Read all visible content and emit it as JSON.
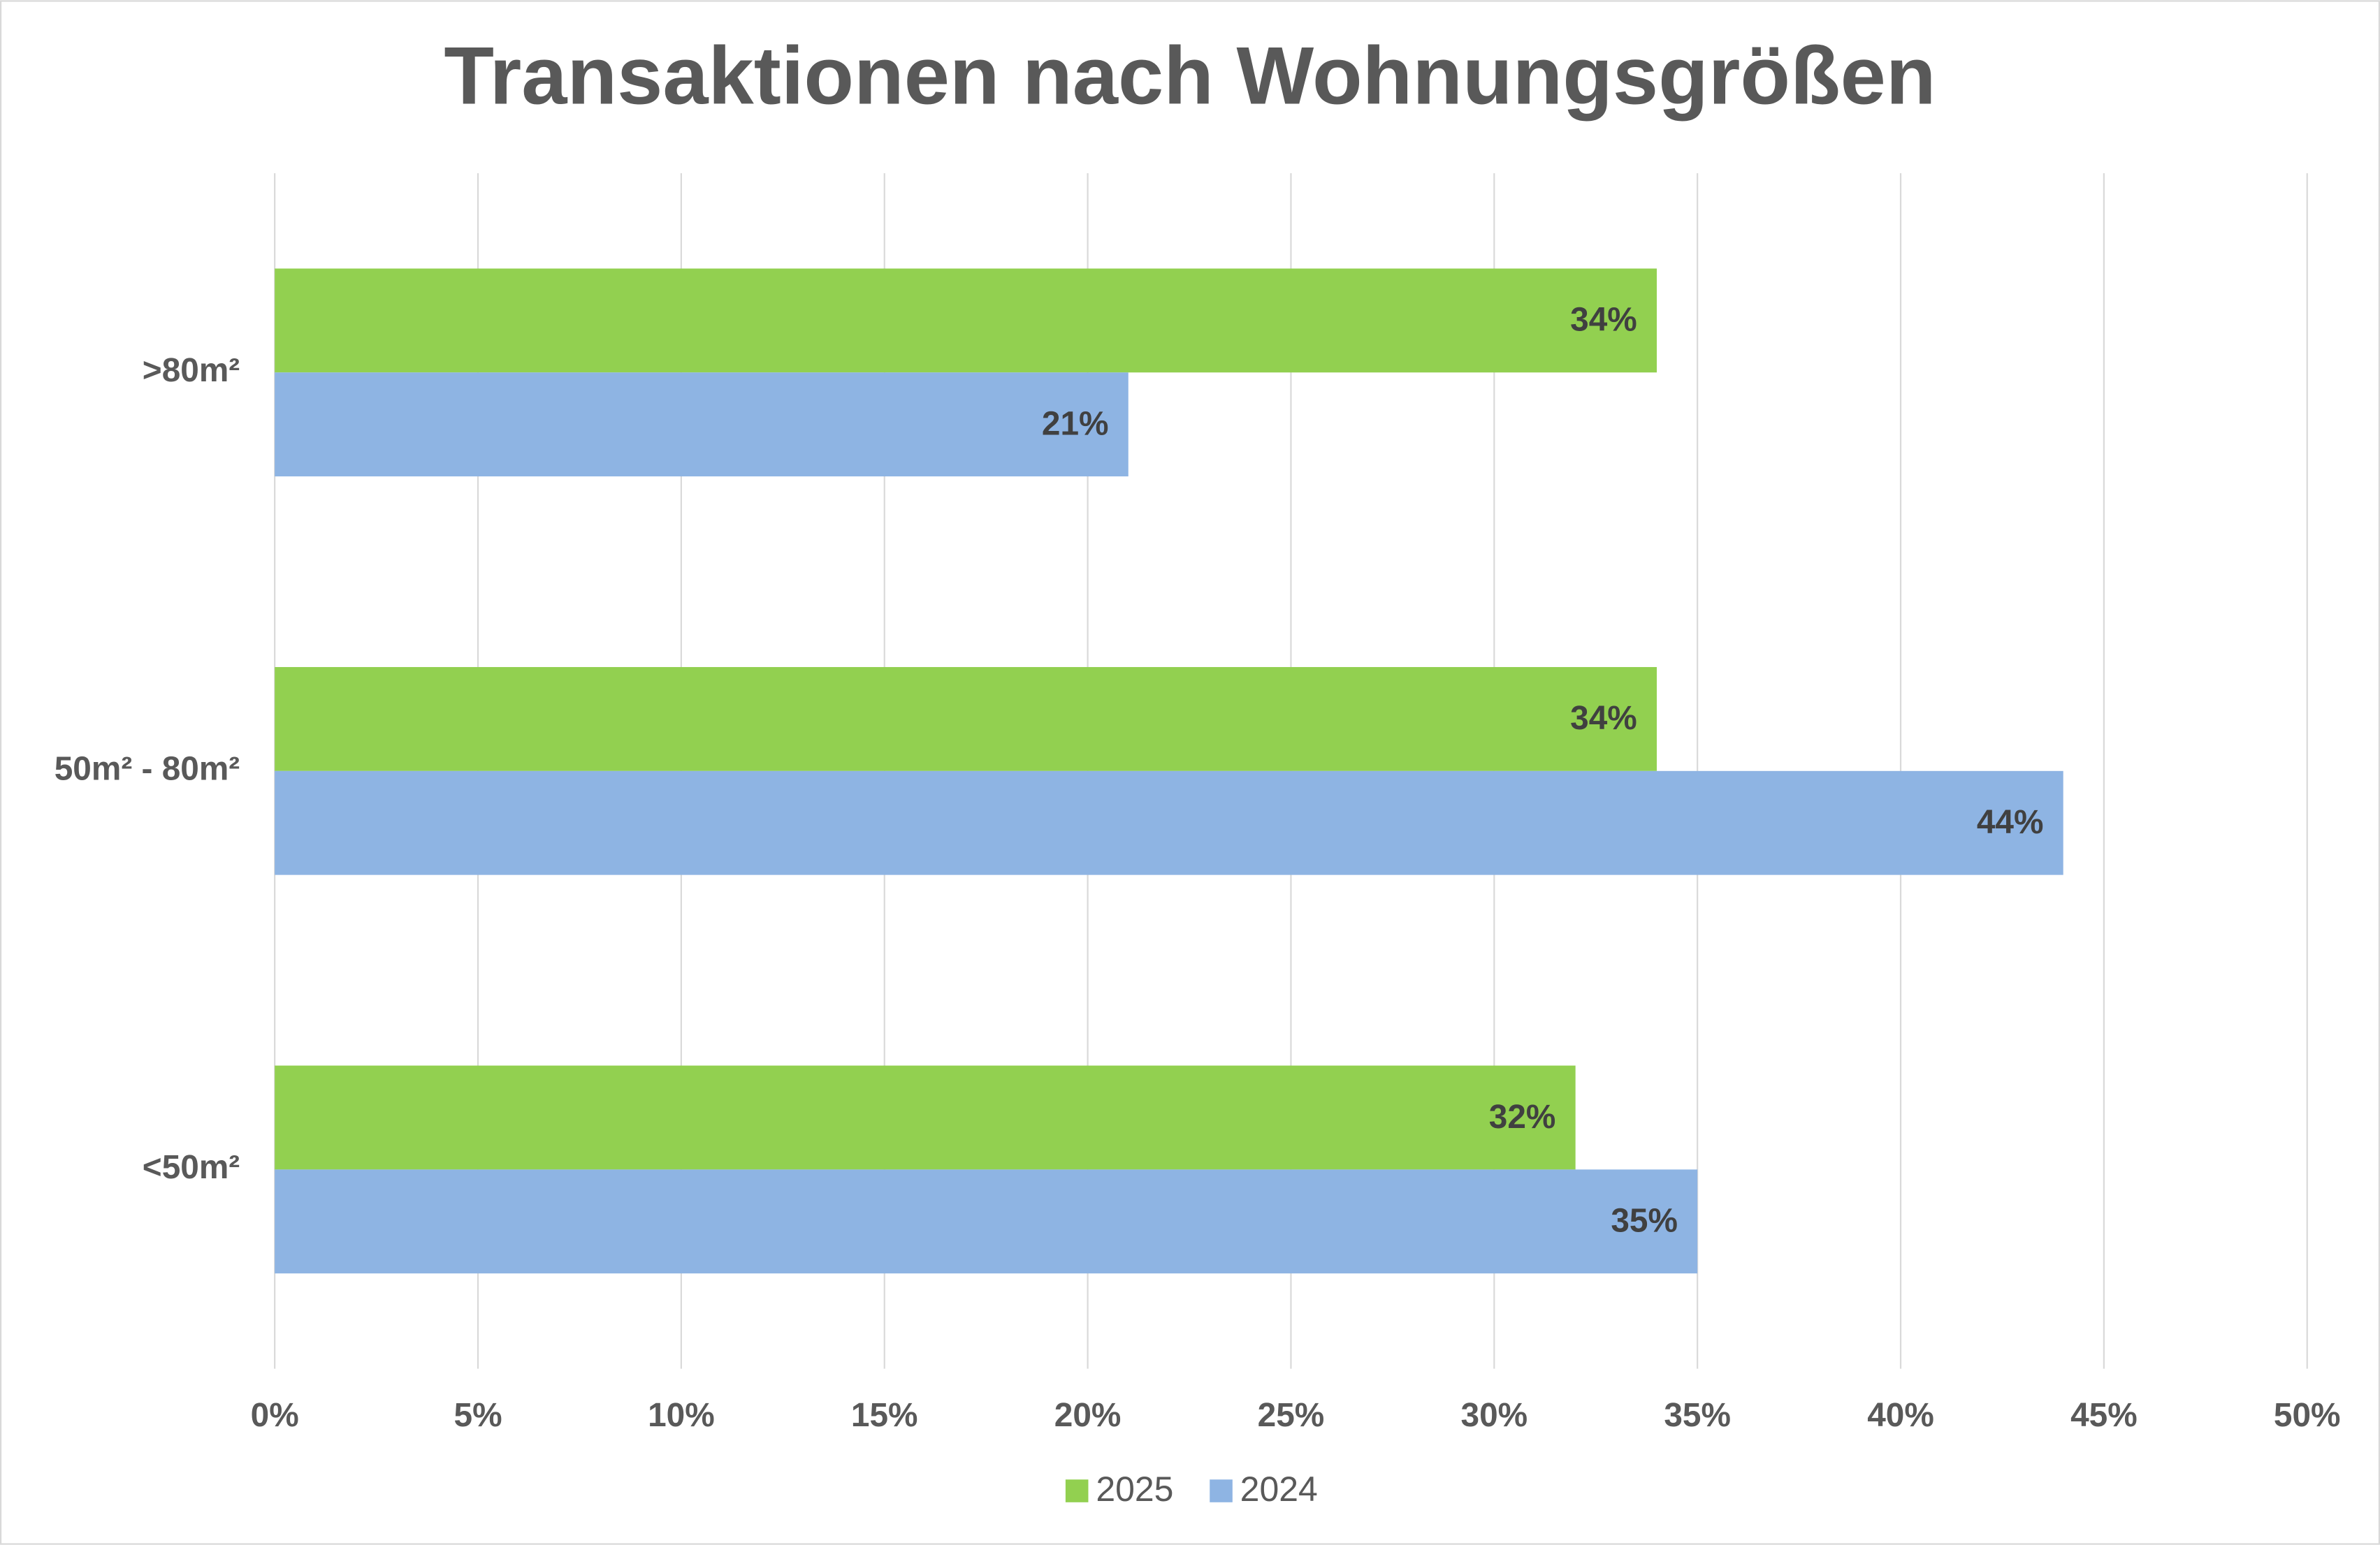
{
  "chart_data": {
    "type": "bar",
    "orientation": "horizontal",
    "title": "Transaktionen nach Wohnungsgrößen",
    "categories": [
      ">80m²",
      "50m² - 80m²",
      "<50m²"
    ],
    "series": [
      {
        "name": "2025",
        "color": "#92d050",
        "values": [
          34,
          34,
          32
        ],
        "value_labels": [
          "34%",
          "34%",
          "32%"
        ]
      },
      {
        "name": "2024",
        "color": "#8eb4e3",
        "values": [
          21,
          44,
          35
        ],
        "value_labels": [
          "21%",
          "44%",
          "35%"
        ]
      }
    ],
    "xlim": [
      0,
      50
    ],
    "xticks": [
      {
        "value": 0,
        "label": "0%"
      },
      {
        "value": 5,
        "label": "5%"
      },
      {
        "value": 10,
        "label": "10%"
      },
      {
        "value": 15,
        "label": "15%"
      },
      {
        "value": 20,
        "label": "20%"
      },
      {
        "value": 25,
        "label": "25%"
      },
      {
        "value": 30,
        "label": "30%"
      },
      {
        "value": 35,
        "label": "35%"
      },
      {
        "value": 40,
        "label": "40%"
      },
      {
        "value": 45,
        "label": "45%"
      },
      {
        "value": 50,
        "label": "50%"
      }
    ],
    "grid": true,
    "legend": "bottom"
  }
}
